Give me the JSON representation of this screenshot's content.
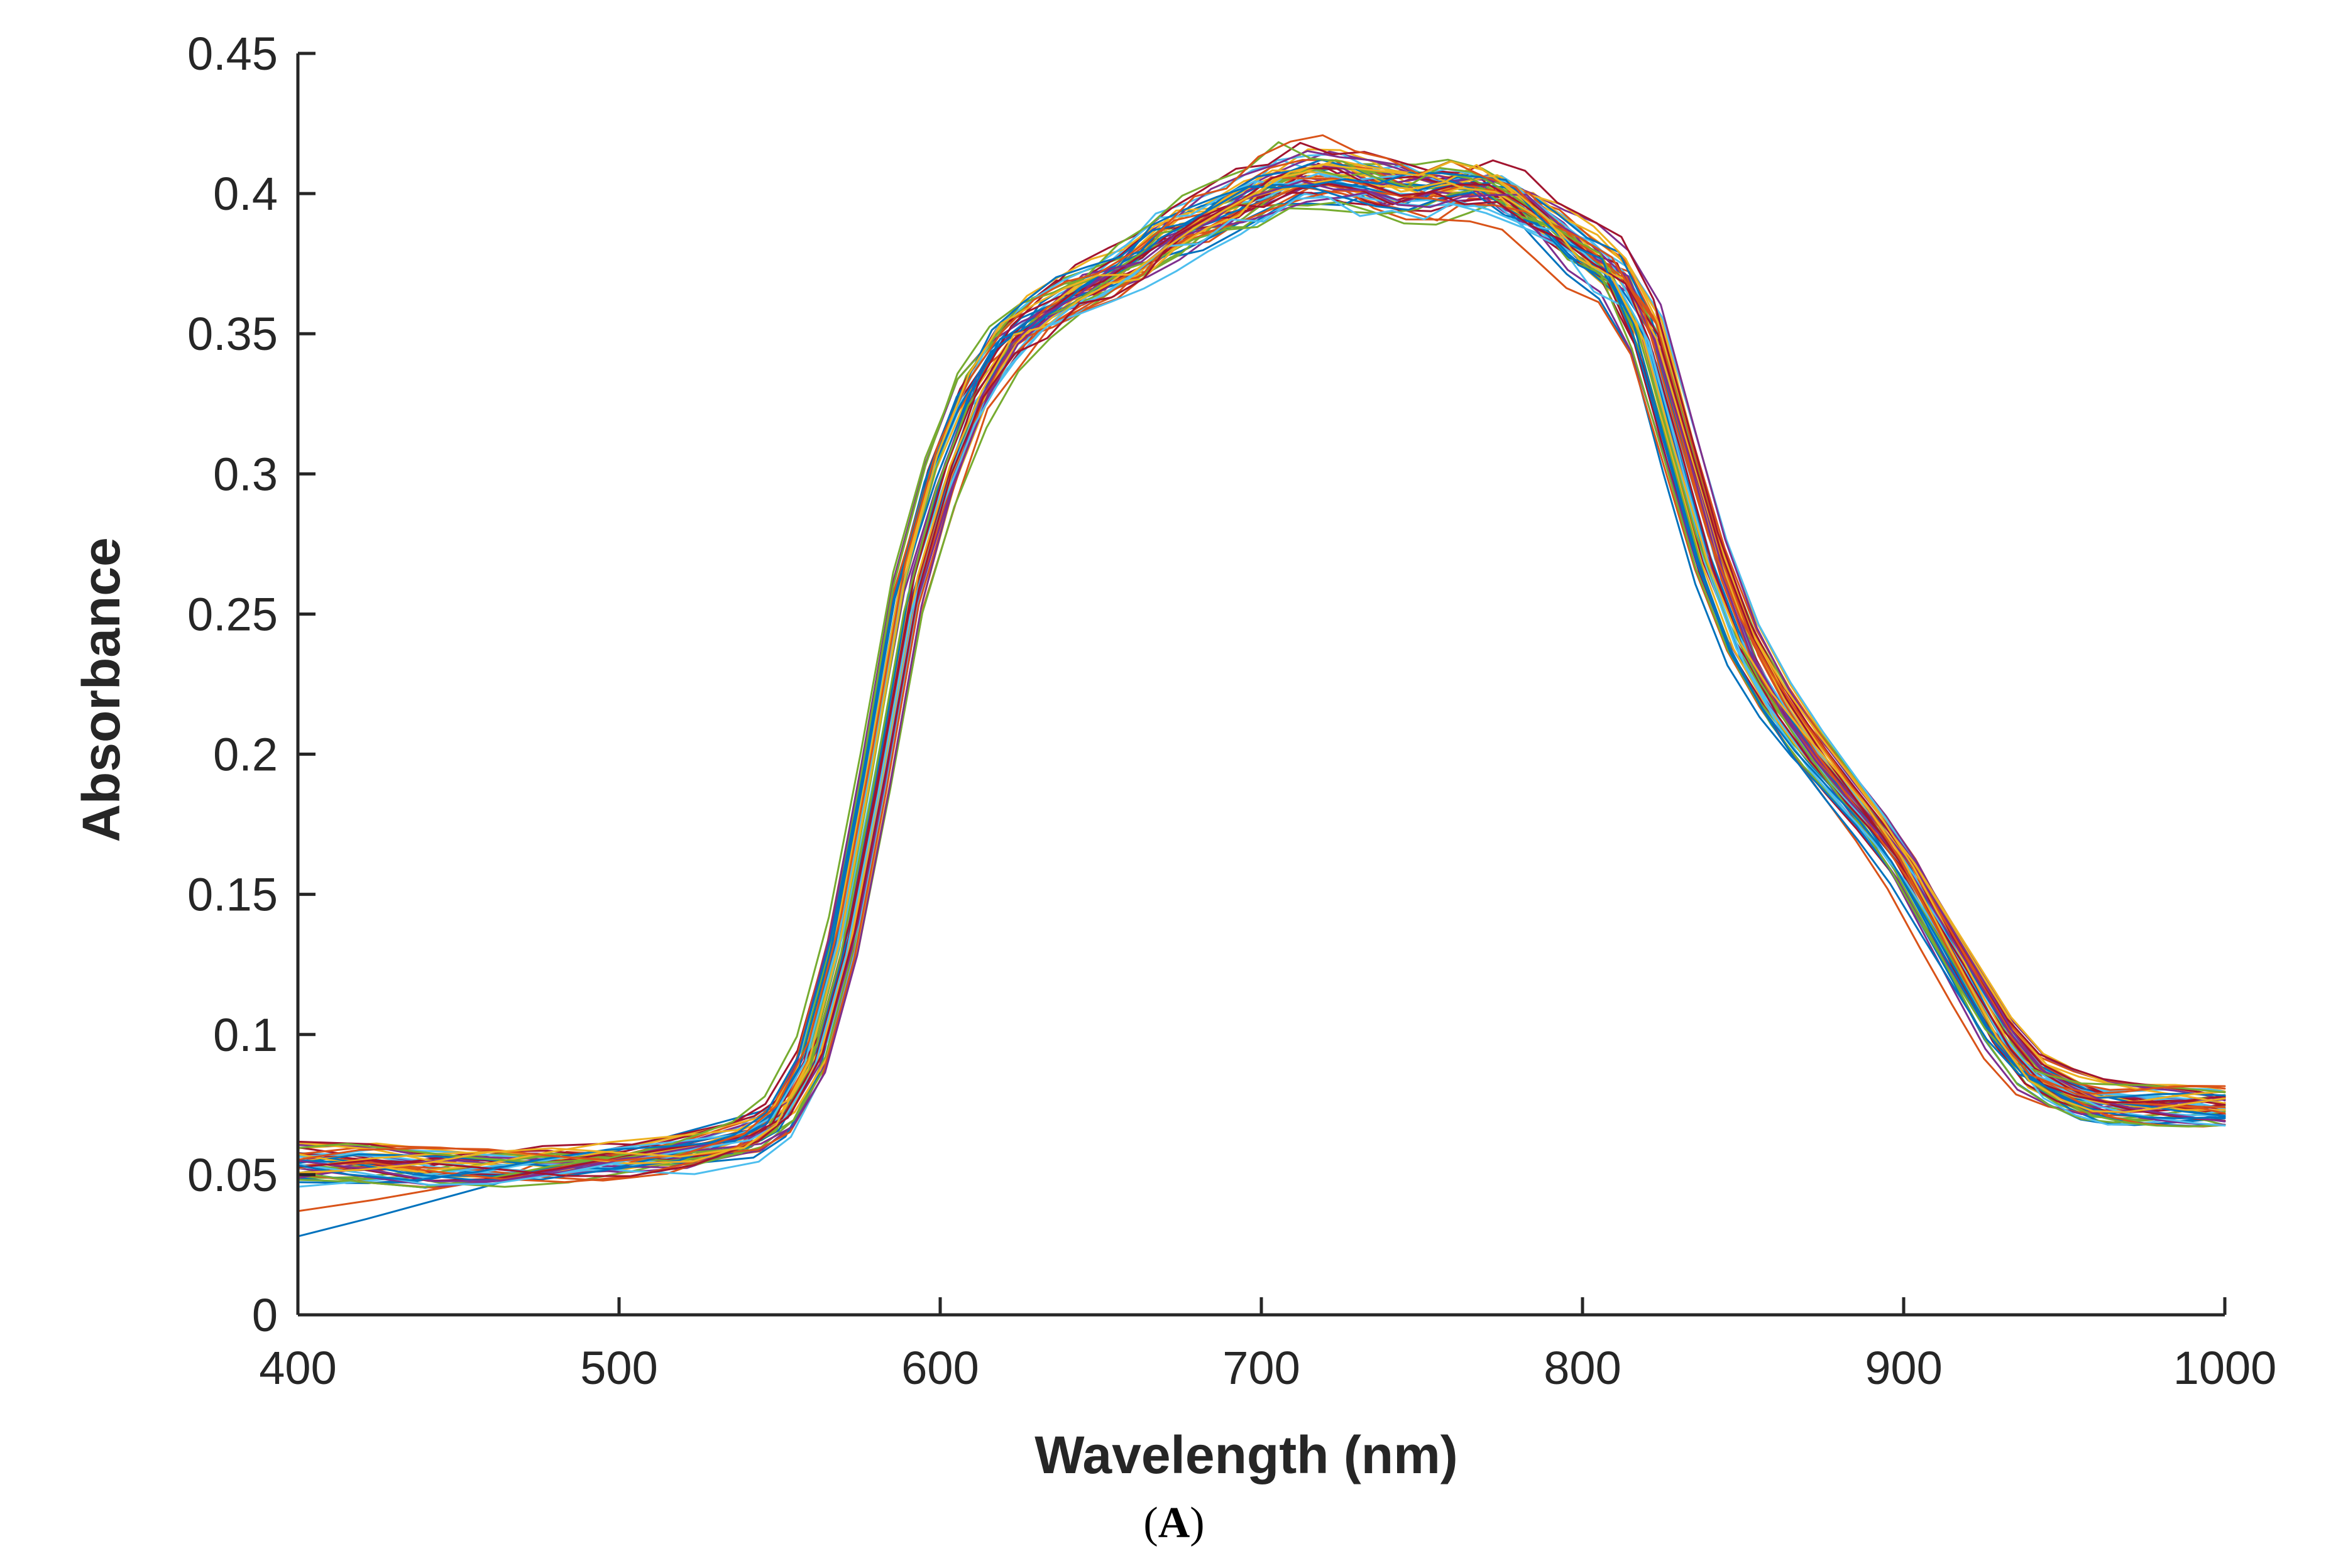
{
  "chart_data": {
    "type": "line",
    "title": "",
    "xlabel": "Wavelength (nm)",
    "ylabel": "Absorbance",
    "xlim": [
      400,
      1000
    ],
    "ylim": [
      0,
      0.45
    ],
    "xticks": [
      400,
      500,
      600,
      700,
      800,
      900,
      1000
    ],
    "yticks": [
      0,
      0.05,
      0.1,
      0.15,
      0.2,
      0.25,
      0.3,
      0.35,
      0.4,
      0.45
    ],
    "ytick_labels": [
      "0",
      "0.05",
      "0.1",
      "0.15",
      "0.2",
      "0.25",
      "0.3",
      "0.35",
      "0.4",
      "0.45"
    ],
    "grid": false,
    "legend": "none",
    "description_of_series": "About 50 overlapping absorbance spectra; representative mean curve given, other series vary slightly around it",
    "x": [
      400,
      420,
      440,
      460,
      480,
      500,
      520,
      540,
      550,
      560,
      570,
      580,
      590,
      600,
      610,
      620,
      630,
      640,
      650,
      660,
      670,
      680,
      690,
      700,
      710,
      720,
      730,
      740,
      750,
      760,
      770,
      780,
      790,
      800,
      810,
      820,
      830,
      840,
      850,
      860,
      870,
      880,
      890,
      900,
      910,
      920,
      930,
      940,
      950,
      960,
      970,
      980,
      990,
      1000
    ],
    "mean_values": [
      0.054,
      0.054,
      0.053,
      0.054,
      0.055,
      0.056,
      0.058,
      0.063,
      0.071,
      0.092,
      0.135,
      0.195,
      0.26,
      0.3,
      0.33,
      0.348,
      0.358,
      0.365,
      0.37,
      0.376,
      0.385,
      0.39,
      0.396,
      0.402,
      0.407,
      0.408,
      0.406,
      0.404,
      0.403,
      0.405,
      0.404,
      0.398,
      0.39,
      0.38,
      0.372,
      0.35,
      0.31,
      0.27,
      0.24,
      0.22,
      0.204,
      0.19,
      0.176,
      0.16,
      0.14,
      0.12,
      0.1,
      0.086,
      0.08,
      0.076,
      0.075,
      0.075,
      0.075,
      0.075
    ],
    "series_colors": [
      "#0072BD",
      "#D95319",
      "#EDB120",
      "#7E2F8E",
      "#77AC30",
      "#4DBEEE",
      "#A2142F"
    ]
  },
  "caption": {
    "open": "(",
    "letter": "A",
    "close": ")"
  }
}
